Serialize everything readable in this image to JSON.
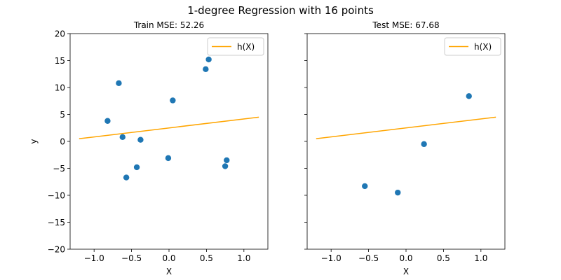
{
  "suptitle": "1-degree Regression with 16 points",
  "chart_data": [
    {
      "type": "scatter",
      "title": "Train MSE: 52.26",
      "xlabel": "X",
      "ylabel": "y",
      "xlim": [
        -1.32,
        1.32
      ],
      "ylim": [
        -20,
        20
      ],
      "xticks": [
        -1.0,
        -0.5,
        0.0,
        0.5,
        1.0
      ],
      "xtick_labels": [
        "−1.0",
        "−0.5",
        "0.0",
        "0.5",
        "1.0"
      ],
      "yticks": [
        -20,
        -15,
        -10,
        -5,
        0,
        5,
        10,
        15,
        20
      ],
      "ytick_labels": [
        "−20",
        "−15",
        "−10",
        "−5",
        "0",
        "5",
        "10",
        "15",
        "20"
      ],
      "show_yticklabels": true,
      "grid": false,
      "legend": {
        "position": "top-right",
        "entries": [
          "h(X)"
        ]
      },
      "points": [
        {
          "x": -0.82,
          "y": 3.8
        },
        {
          "x": -0.67,
          "y": 10.8
        },
        {
          "x": -0.62,
          "y": 0.8
        },
        {
          "x": -0.57,
          "y": -6.7
        },
        {
          "x": -0.43,
          "y": -4.8
        },
        {
          "x": -0.38,
          "y": 0.3
        },
        {
          "x": -0.01,
          "y": -3.1
        },
        {
          "x": 0.05,
          "y": 7.6
        },
        {
          "x": 0.49,
          "y": 13.4
        },
        {
          "x": 0.53,
          "y": 15.2
        },
        {
          "x": 0.75,
          "y": -4.6
        },
        {
          "x": 0.77,
          "y": -3.5
        }
      ],
      "line": {
        "name": "h(X)",
        "x": [
          -1.2,
          1.2
        ],
        "y": [
          0.5,
          4.5
        ]
      }
    },
    {
      "type": "scatter",
      "title": "Test MSE: 67.68",
      "xlabel": "X",
      "ylabel": "",
      "xlim": [
        -1.32,
        1.32
      ],
      "ylim": [
        -20,
        20
      ],
      "xticks": [
        -1.0,
        -0.5,
        0.0,
        0.5,
        1.0
      ],
      "xtick_labels": [
        "−1.0",
        "−0.5",
        "0.0",
        "0.5",
        "1.0"
      ],
      "yticks": [
        -20,
        -15,
        -10,
        -5,
        0,
        5,
        10,
        15,
        20
      ],
      "ytick_labels": [],
      "show_yticklabels": false,
      "grid": false,
      "legend": {
        "position": "top-right",
        "entries": [
          "h(X)"
        ]
      },
      "points": [
        {
          "x": -0.55,
          "y": -8.3
        },
        {
          "x": -0.11,
          "y": -9.5
        },
        {
          "x": 0.24,
          "y": -0.5
        },
        {
          "x": 0.84,
          "y": 8.4
        }
      ],
      "line": {
        "name": "h(X)",
        "x": [
          -1.2,
          1.2
        ],
        "y": [
          0.5,
          4.5
        ]
      }
    }
  ],
  "colors": {
    "points": "#1f77b4",
    "line": "#ffa500",
    "axes": "#000000",
    "legend_border": "#cccccc"
  }
}
